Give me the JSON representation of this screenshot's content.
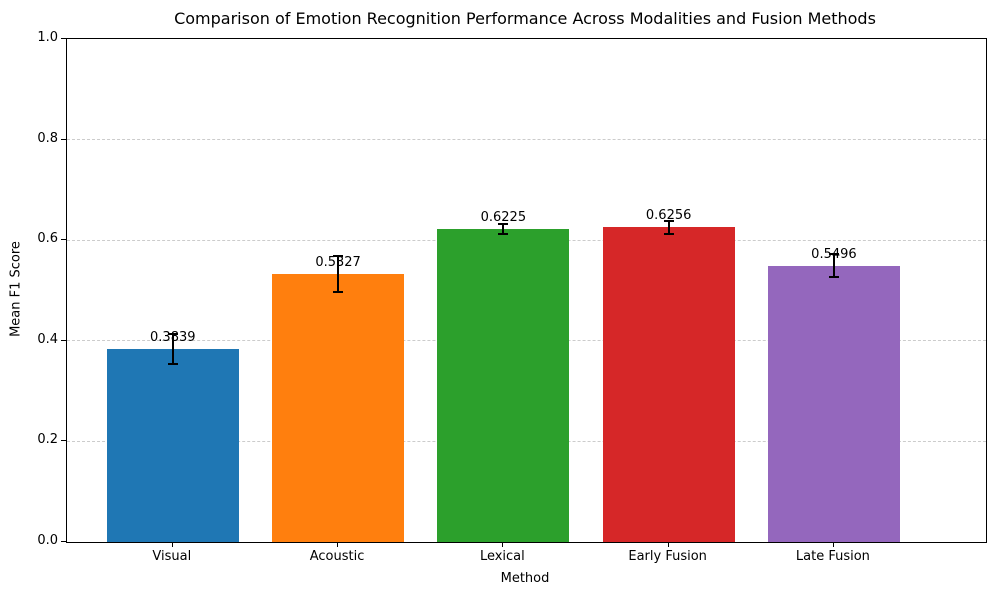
{
  "chart_data": {
    "type": "bar",
    "title": "Comparison of Emotion Recognition Performance Across Modalities and Fusion Methods",
    "xlabel": "Method",
    "ylabel": "Mean F1 Score",
    "categories": [
      "Visual",
      "Acoustic",
      "Lexical",
      "Early Fusion",
      "Late Fusion"
    ],
    "values": [
      0.3839,
      0.5327,
      0.6225,
      0.6256,
      0.5496
    ],
    "value_labels": [
      "0.3839",
      "0.5327",
      "0.6225",
      "0.6256",
      "0.5496"
    ],
    "errors": [
      0.03,
      0.036,
      0.01,
      0.013,
      0.022
    ],
    "bar_colors": [
      "#1f77b4",
      "#ff7f0e",
      "#2ca02c",
      "#d62728",
      "#9467bd"
    ],
    "error_bar_color": "#000000",
    "ylim": [
      0.0,
      1.0
    ],
    "yticks": [
      0.0,
      0.2,
      0.4,
      0.6,
      0.8,
      1.0
    ],
    "ytick_labels": [
      "0.0",
      "0.2",
      "0.4",
      "0.6",
      "0.8",
      "1.0"
    ],
    "grid": {
      "axis": "y",
      "style": "dashed",
      "color": "#cccccc"
    },
    "legend": null
  }
}
